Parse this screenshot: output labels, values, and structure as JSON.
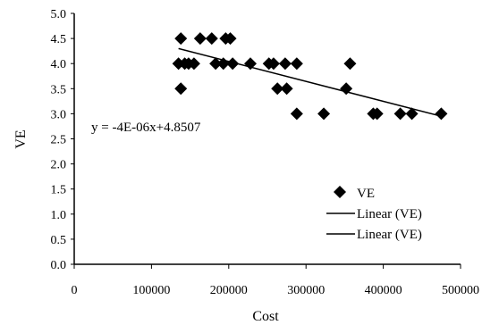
{
  "chart_data": {
    "type": "scatter",
    "xlabel": "Cost",
    "ylabel": "VE",
    "xlim": [
      0,
      500000
    ],
    "ylim": [
      0.0,
      5.0
    ],
    "x_ticks": [
      "0",
      "100000",
      "200000",
      "300000",
      "400000",
      "500000"
    ],
    "y_ticks": [
      "0.0",
      "0.5",
      "1.0",
      "1.5",
      "2.0",
      "2.5",
      "3.0",
      "3.5",
      "4.0",
      "4.5",
      "5.0"
    ],
    "grid": false,
    "legend_position": "bottom-right",
    "legend": [
      "VE",
      "Linear (VE)",
      "Linear (VE)"
    ],
    "annotation": "y = -4E-06x+4.8507",
    "series": [
      {
        "name": "VE",
        "marker": "diamond",
        "color": "#000000",
        "points": [
          [
            135000,
            4.0
          ],
          [
            138000,
            4.5
          ],
          [
            138000,
            3.5
          ],
          [
            143000,
            4.0
          ],
          [
            148000,
            4.0
          ],
          [
            155000,
            4.0
          ],
          [
            163000,
            4.5
          ],
          [
            178000,
            4.5
          ],
          [
            183000,
            4.0
          ],
          [
            193000,
            4.0
          ],
          [
            196000,
            4.5
          ],
          [
            202000,
            4.5
          ],
          [
            205000,
            4.0
          ],
          [
            228000,
            4.0
          ],
          [
            252000,
            4.0
          ],
          [
            258000,
            4.0
          ],
          [
            263000,
            3.5
          ],
          [
            273000,
            4.0
          ],
          [
            275000,
            3.5
          ],
          [
            288000,
            4.0
          ],
          [
            288000,
            3.0
          ],
          [
            323000,
            3.0
          ],
          [
            352000,
            3.5
          ],
          [
            357000,
            4.0
          ],
          [
            387000,
            3.0
          ],
          [
            392000,
            3.0
          ],
          [
            422000,
            3.0
          ],
          [
            437000,
            3.0
          ],
          [
            475000,
            3.0
          ]
        ]
      },
      {
        "name": "Linear (VE)",
        "type": "line",
        "color": "#000000",
        "points": [
          [
            135000,
            4.3
          ],
          [
            475000,
            2.95
          ]
        ]
      }
    ]
  }
}
